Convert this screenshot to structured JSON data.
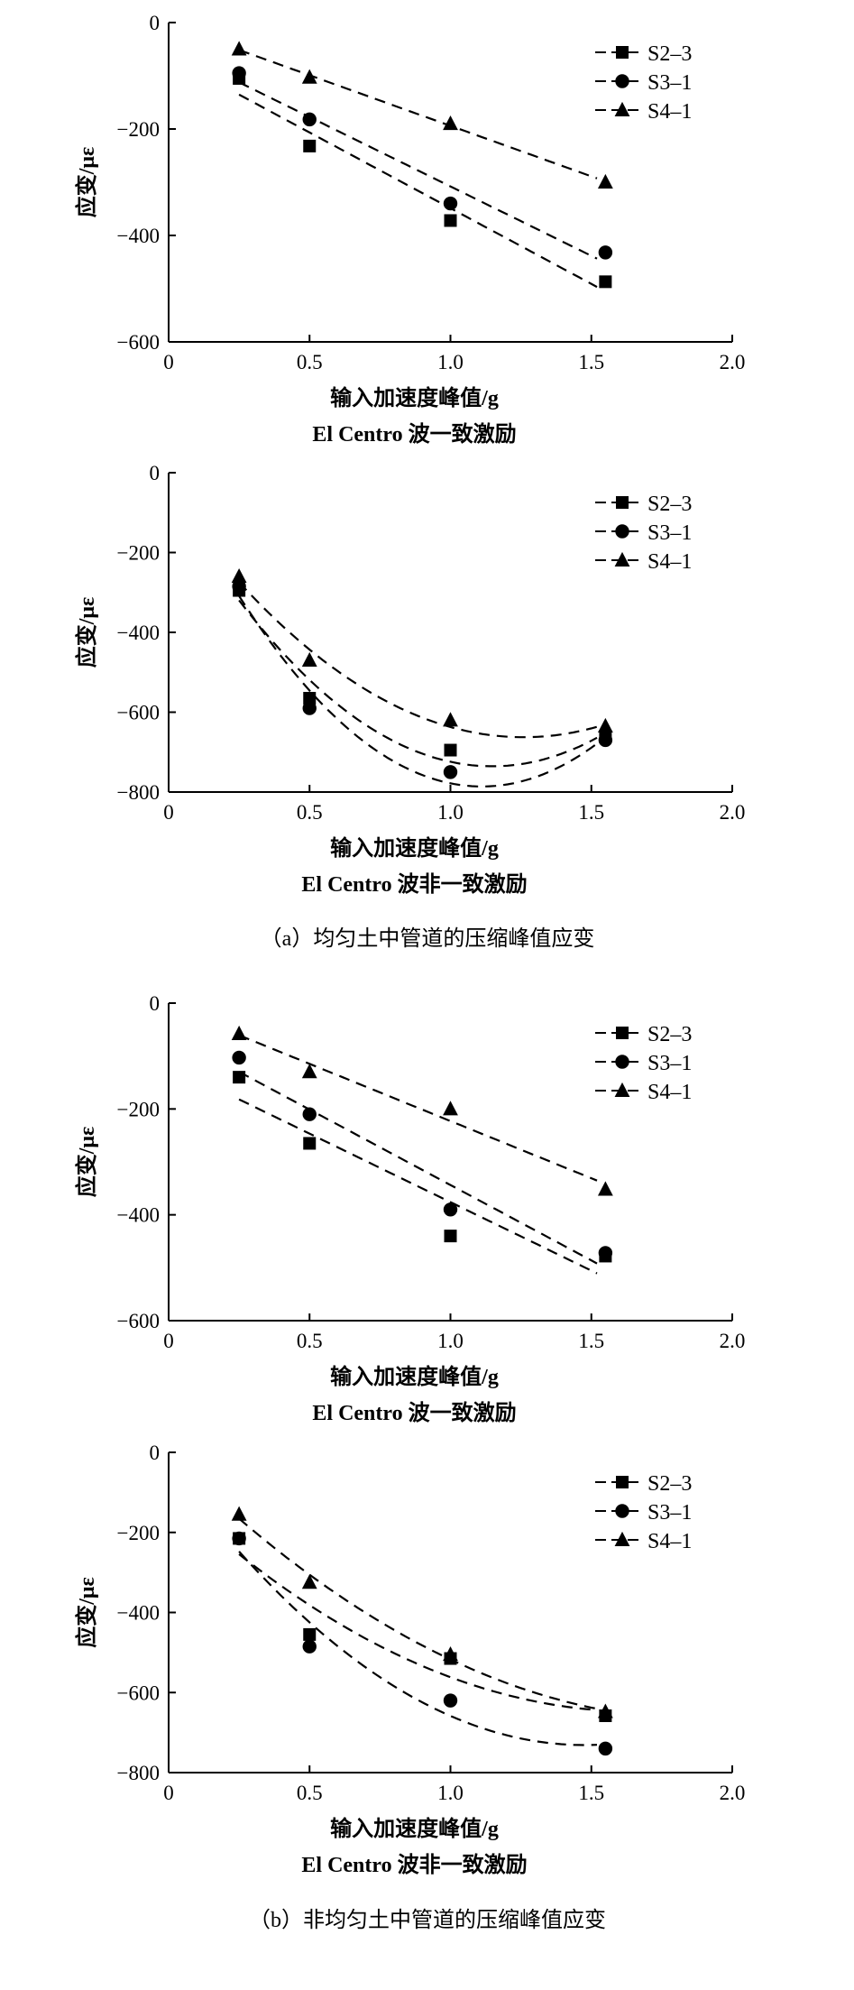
{
  "captions": {
    "a": "（a）均匀土中管道的压缩峰值应变",
    "b": "（b）非均匀土中管道的压缩峰值应变"
  },
  "chart_data": [
    {
      "type": "scatter",
      "fit": "linear",
      "subtitle": "El Centro 波一致激励",
      "xlabel": "输入加速度峰值/g",
      "ylabel": "应变/με",
      "xlim": [
        0,
        2.0
      ],
      "ylim": [
        -600,
        0
      ],
      "xticks": [
        "0",
        "0.5",
        "1.0",
        "1.5",
        "2.0"
      ],
      "yticks": [
        "0",
        "-200",
        "-400",
        "-600"
      ],
      "legend": "top-right",
      "x": [
        0.25,
        0.5,
        1.0,
        1.55
      ],
      "series": [
        {
          "name": "S2-3",
          "marker": "square",
          "values": [
            -105,
            -232,
            -372,
            -487
          ]
        },
        {
          "name": "S3-1",
          "marker": "circle",
          "values": [
            -95,
            -182,
            -340,
            -432
          ]
        },
        {
          "name": "S4-1",
          "marker": "triangle",
          "values": [
            -50,
            -103,
            -190,
            -300
          ]
        }
      ]
    },
    {
      "type": "scatter",
      "fit": "quadratic",
      "subtitle": "El Centro 波非一致激励",
      "xlabel": "输入加速度峰值/g",
      "ylabel": "应变/με",
      "xlim": [
        0,
        2.0
      ],
      "ylim": [
        -800,
        0
      ],
      "xticks": [
        "0",
        "0.5",
        "1.0",
        "1.5",
        "2.0"
      ],
      "yticks": [
        "0",
        "-200",
        "-400",
        "-600",
        "-800"
      ],
      "legend": "top-right",
      "x": [
        0.25,
        0.5,
        1.0,
        1.55
      ],
      "series": [
        {
          "name": "S2-3",
          "marker": "square",
          "values": [
            -295,
            -565,
            -695,
            -660
          ]
        },
        {
          "name": "S3-1",
          "marker": "circle",
          "values": [
            -285,
            -590,
            -750,
            -670
          ]
        },
        {
          "name": "S4-1",
          "marker": "triangle",
          "values": [
            -260,
            -470,
            -620,
            -635
          ]
        }
      ]
    },
    {
      "type": "scatter",
      "fit": "linear",
      "subtitle": "El Centro 波一致激励",
      "xlabel": "输入加速度峰值/g",
      "ylabel": "应变/με",
      "xlim": [
        0,
        2.0
      ],
      "ylim": [
        -600,
        0
      ],
      "xticks": [
        "0",
        "0.5",
        "1.0",
        "1.5",
        "2.0"
      ],
      "yticks": [
        "0",
        "-200",
        "-400",
        "-600"
      ],
      "legend": "top-right",
      "x": [
        0.25,
        0.5,
        1.0,
        1.55
      ],
      "series": [
        {
          "name": "S2-3",
          "marker": "square",
          "values": [
            -140,
            -265,
            -440,
            -478
          ]
        },
        {
          "name": "S3-1",
          "marker": "circle",
          "values": [
            -103,
            -210,
            -390,
            -472
          ]
        },
        {
          "name": "S4-1",
          "marker": "triangle",
          "values": [
            -58,
            -130,
            -200,
            -352
          ]
        }
      ]
    },
    {
      "type": "scatter",
      "fit": "quadratic",
      "subtitle": "El Centro 波非一致激励",
      "xlabel": "输入加速度峰值/g",
      "ylabel": "应变/με",
      "xlim": [
        0,
        2.0
      ],
      "ylim": [
        -800,
        0
      ],
      "xticks": [
        "0",
        "0.5",
        "1.0",
        "1.5",
        "2.0"
      ],
      "yticks": [
        "0",
        "-200",
        "-400",
        "-600",
        "-800"
      ],
      "legend": "top-right",
      "x": [
        0.25,
        0.5,
        1.0,
        1.55
      ],
      "series": [
        {
          "name": "S2-3",
          "marker": "square",
          "values": [
            -215,
            -455,
            -515,
            -658
          ]
        },
        {
          "name": "S3-1",
          "marker": "circle",
          "values": [
            -215,
            -485,
            -620,
            -740
          ]
        },
        {
          "name": "S4-1",
          "marker": "triangle",
          "values": [
            -155,
            -325,
            -505,
            -648
          ]
        }
      ]
    }
  ]
}
